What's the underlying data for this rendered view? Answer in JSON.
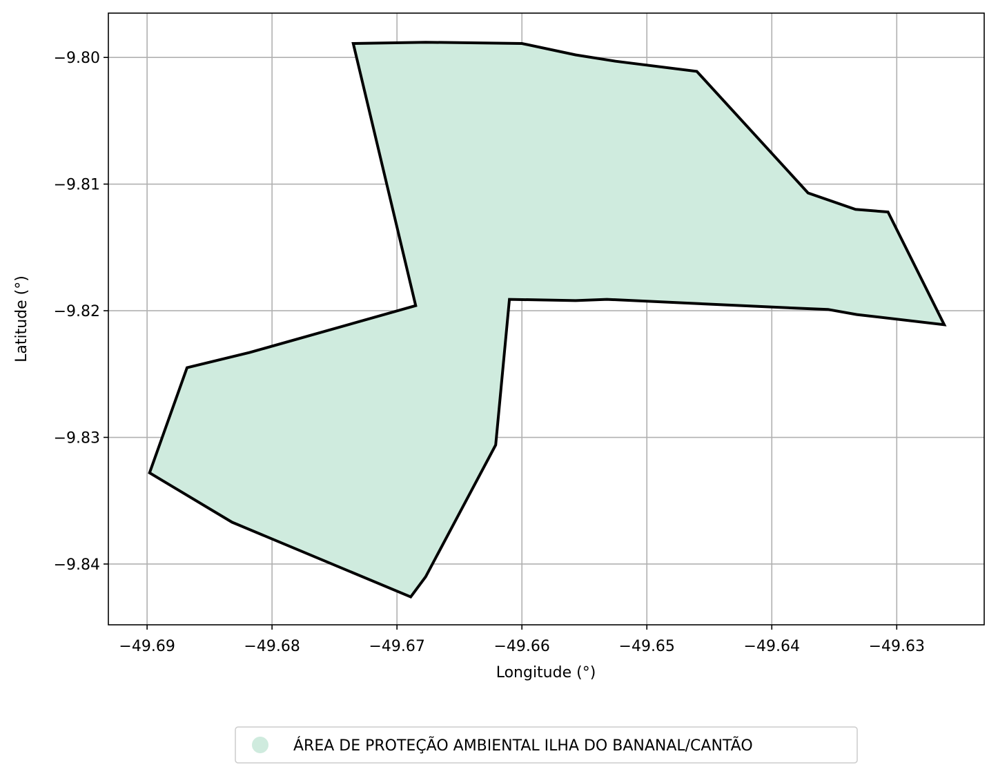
{
  "axes": {
    "xlabel": "Longitude (°)",
    "ylabel": "Latitude (°)",
    "xlim": [
      -49.6931,
      -49.623
    ],
    "ylim": [
      -9.8448,
      -9.7965
    ],
    "xticks": [
      -49.69,
      -49.68,
      -49.67,
      -49.66,
      -49.65,
      -49.64,
      -49.63
    ],
    "yticks": [
      -9.8,
      -9.81,
      -9.82,
      -9.83,
      -9.84
    ],
    "xtick_labels": [
      "−49.69",
      "−49.68",
      "−49.67",
      "−49.66",
      "−49.65",
      "−49.64",
      "−49.63"
    ],
    "ytick_labels": [
      "−9.80",
      "−9.81",
      "−9.82",
      "−9.83",
      "−9.84"
    ],
    "grid": true
  },
  "legend": {
    "placement": "bottom-center",
    "label": "ÁREA DE PROTEÇÃO AMBIENTAL ILHA DO BANANAL/CANTÃO",
    "swatch_color": "#cfebde"
  },
  "area": {
    "name": "ÁREA DE PROTEÇÃO AMBIENTAL ILHA DO BANANAL/CANTÃO",
    "fill_color": "#cfebde",
    "edge_color": "#000000",
    "boundary": [
      [
        -49.6735,
        -9.7989
      ],
      [
        -49.6677,
        -9.7988
      ],
      [
        -49.66,
        -9.7989
      ],
      [
        -49.6557,
        -9.7998
      ],
      [
        -49.6525,
        -9.8003
      ],
      [
        -49.646,
        -9.8011
      ],
      [
        -49.6371,
        -9.8107
      ],
      [
        -49.6333,
        -9.812
      ],
      [
        -49.6307,
        -9.8122
      ],
      [
        -49.6262,
        -9.8211
      ],
      [
        -49.6332,
        -9.8203
      ],
      [
        -49.6355,
        -9.8199
      ],
      [
        -49.638,
        -9.8198
      ],
      [
        -49.6532,
        -9.8191
      ],
      [
        -49.6557,
        -9.8192
      ],
      [
        -49.661,
        -9.8191
      ],
      [
        -49.6621,
        -9.8306
      ],
      [
        -49.6677,
        -9.841
      ],
      [
        -49.6689,
        -9.8426
      ],
      [
        -49.6832,
        -9.8367
      ],
      [
        -49.6898,
        -9.8328
      ],
      [
        -49.6868,
        -9.8245
      ],
      [
        -49.6818,
        -9.8233
      ],
      [
        -49.6685,
        -9.8196
      ],
      [
        -49.6735,
        -9.7989
      ]
    ]
  }
}
